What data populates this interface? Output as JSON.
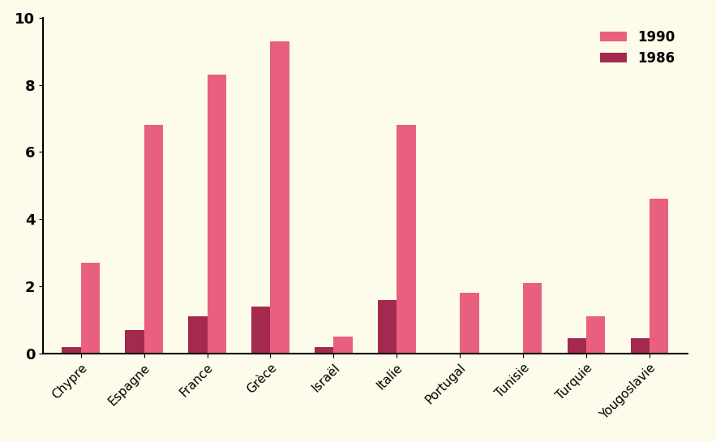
{
  "chart_data": {
    "type": "bar",
    "categories": [
      "Chypre",
      "Espagne",
      "France",
      "Grèce",
      "Israël",
      "Italie",
      "Portugal",
      "Tunisie",
      "Turquie",
      "Yougoslavie"
    ],
    "series": [
      {
        "name": "1990",
        "color": "#e8607e",
        "values": [
          2.7,
          6.8,
          8.3,
          9.3,
          0.5,
          6.8,
          1.8,
          2.1,
          1.1,
          4.6
        ]
      },
      {
        "name": "1986",
        "color": "#a3294f",
        "values": [
          0.2,
          0.7,
          1.1,
          1.4,
          0.2,
          1.6,
          null,
          null,
          0.45,
          0.45
        ]
      }
    ],
    "ylim": [
      0,
      10
    ],
    "yticks": [
      0,
      2,
      4,
      6,
      8,
      10
    ],
    "grid": false,
    "legend": "upper right"
  }
}
